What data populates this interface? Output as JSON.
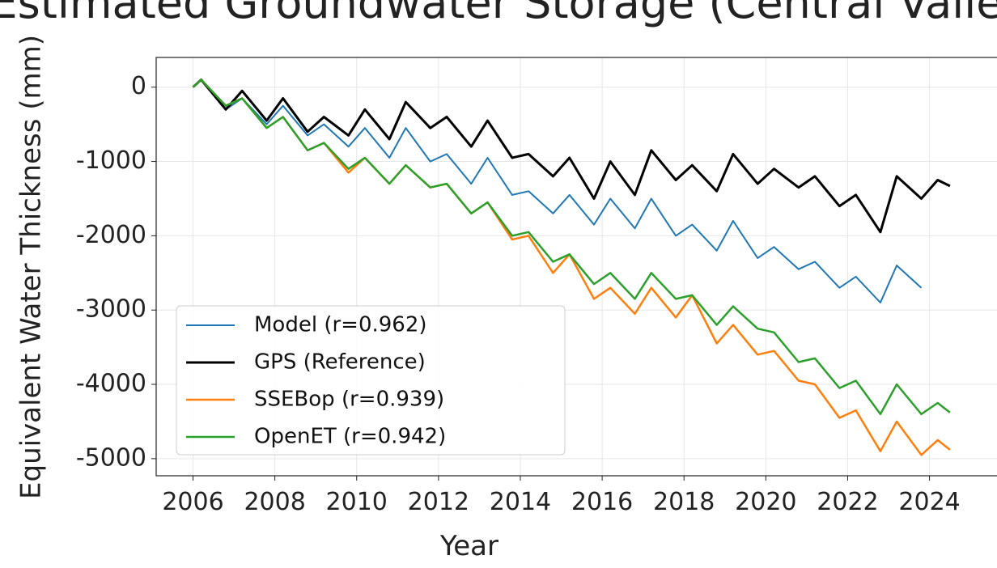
{
  "chart_data": {
    "type": "line",
    "title": "Estimated Groundwater Storage (Central Valley)",
    "xlabel": "Year",
    "ylabel": "Equivalent Water Thickness (mm)",
    "xlim": [
      2005.1,
      2025.65
    ],
    "ylim": [
      -5230,
      400
    ],
    "xticks": [
      2006,
      2008,
      2010,
      2012,
      2014,
      2016,
      2018,
      2020,
      2022,
      2024
    ],
    "yticks": [
      0,
      -1000,
      -2000,
      -3000,
      -4000,
      -5000
    ],
    "grid": true,
    "legend": "lower left",
    "x": [
      2006.0,
      2006.2,
      2006.8,
      2007.2,
      2007.8,
      2008.2,
      2008.8,
      2009.2,
      2009.8,
      2010.2,
      2010.8,
      2011.2,
      2011.8,
      2012.2,
      2012.8,
      2013.2,
      2013.8,
      2014.2,
      2014.8,
      2015.2,
      2015.8,
      2016.2,
      2016.8,
      2017.2,
      2017.8,
      2018.2,
      2018.8,
      2019.2,
      2019.8,
      2020.2,
      2020.8,
      2021.2,
      2021.8,
      2022.2,
      2022.8,
      2023.2,
      2023.8,
      2024.2,
      2024.5
    ],
    "series": [
      {
        "name": "Model (r=0.962)",
        "color": "#1f77b4",
        "width": 2,
        "values": [
          0,
          100,
          -300,
          -150,
          -500,
          -250,
          -650,
          -500,
          -800,
          -550,
          -950,
          -550,
          -1000,
          -900,
          -1300,
          -950,
          -1450,
          -1400,
          -1700,
          -1450,
          -1850,
          -1500,
          -1900,
          -1500,
          -2000,
          -1850,
          -2200,
          -1800,
          -2300,
          -2150,
          -2450,
          -2350,
          -2700,
          -2550,
          -2900,
          -2400,
          -2700,
          null,
          null
        ]
      },
      {
        "name": "GPS (Reference)",
        "color": "#000000",
        "width": 3,
        "values": [
          0,
          100,
          -300,
          -50,
          -450,
          -150,
          -600,
          -400,
          -650,
          -300,
          -700,
          -200,
          -550,
          -400,
          -800,
          -450,
          -950,
          -900,
          -1200,
          -950,
          -1500,
          -1000,
          -1450,
          -850,
          -1250,
          -1050,
          -1400,
          -900,
          -1300,
          -1100,
          -1350,
          -1200,
          -1600,
          -1450,
          -1950,
          -1200,
          -1500,
          -1250,
          -1330
        ]
      },
      {
        "name": "SSEBop (r=0.939)",
        "color": "#ff7f0e",
        "width": 2.5,
        "values": [
          0,
          100,
          -250,
          -150,
          -550,
          -400,
          -850,
          -750,
          -1150,
          -950,
          -1300,
          -1050,
          -1350,
          -1300,
          -1700,
          -1550,
          -2050,
          -2000,
          -2500,
          -2250,
          -2850,
          -2700,
          -3050,
          -2700,
          -3100,
          -2800,
          -3450,
          -3200,
          -3600,
          -3550,
          -3950,
          -4000,
          -4450,
          -4350,
          -4900,
          -4500,
          -4950,
          -4750,
          -4880
        ]
      },
      {
        "name": "OpenET (r=0.942)",
        "color": "#2ca02c",
        "width": 2.5,
        "values": [
          0,
          100,
          -250,
          -150,
          -550,
          -400,
          -850,
          -750,
          -1100,
          -950,
          -1300,
          -1050,
          -1350,
          -1300,
          -1700,
          -1550,
          -2000,
          -1950,
          -2350,
          -2250,
          -2650,
          -2500,
          -2850,
          -2500,
          -2850,
          -2800,
          -3200,
          -2950,
          -3250,
          -3300,
          -3700,
          -3650,
          -4050,
          -3950,
          -4400,
          -4000,
          -4400,
          -4250,
          -4380
        ]
      }
    ]
  }
}
